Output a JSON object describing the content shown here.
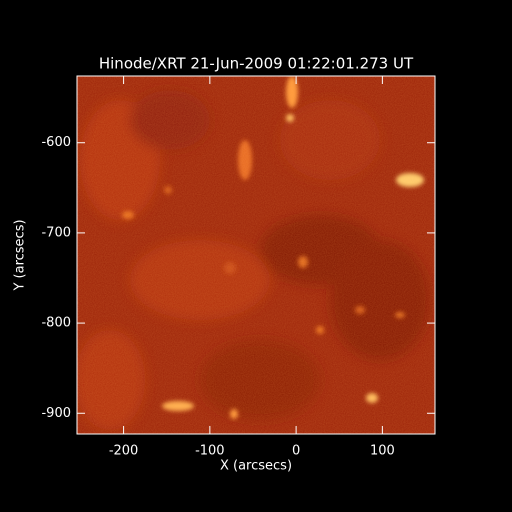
{
  "chart_data": {
    "type": "image",
    "title": "Hinode/XRT 21-Jun-2009 01:22:01.273 UT",
    "x_label": "X (arcsecs)",
    "y_label": "Y (arcsecs)",
    "xlim": [
      -254,
      161
    ],
    "ylim": [
      -923,
      -526
    ],
    "xticks": [
      -200,
      -100,
      0,
      100
    ],
    "yticks": [
      -900,
      -800,
      -700,
      -600
    ]
  }
}
